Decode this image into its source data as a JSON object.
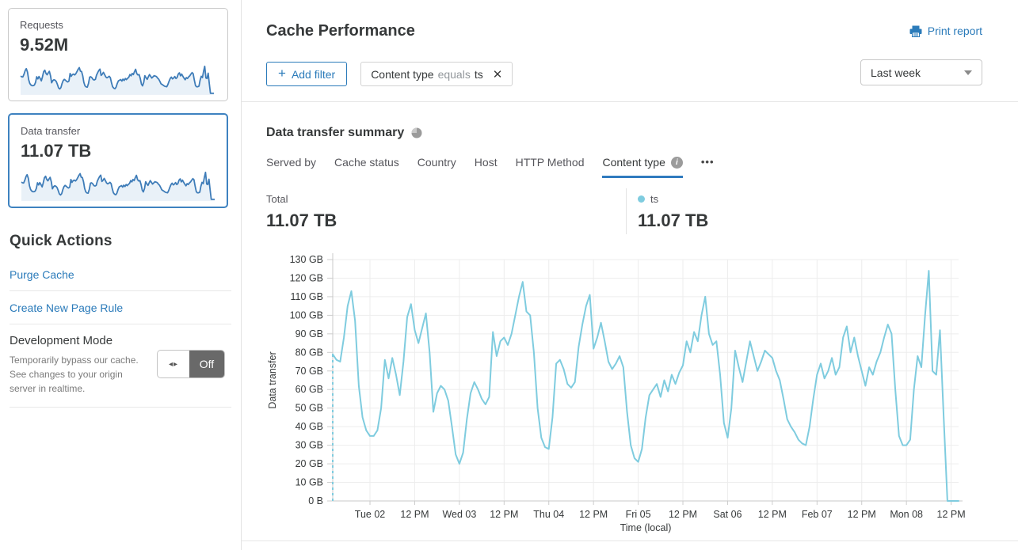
{
  "sidebar": {
    "cards": [
      {
        "label": "Requests",
        "value": "9.52M",
        "selected": false
      },
      {
        "label": "Data transfer",
        "value": "11.07 TB",
        "selected": true
      }
    ],
    "quick_actions": {
      "title": "Quick Actions",
      "links": [
        "Purge Cache",
        "Create New Page Rule"
      ],
      "dev_mode": {
        "title": "Development Mode",
        "description": "Temporarily bypass our cache. See changes to your origin server in realtime.",
        "toggle_state": "Off",
        "toggle_arrows": "◂▸"
      }
    },
    "sparkline_color": "#3e7cb8",
    "sparkline_fill": "#e9f1f8"
  },
  "header": {
    "title": "Cache Performance",
    "print_report_label": "Print report",
    "add_filter_plus": "+",
    "add_filter_label": "Add filter",
    "filter_chip": {
      "field": "Content type",
      "operator": "equals",
      "value": "ts",
      "close_glyph": "✕"
    },
    "time_range_value": "Last week"
  },
  "summary": {
    "title": "Data transfer summary",
    "tabs": [
      "Served by",
      "Cache status",
      "Country",
      "Host",
      "HTTP Method",
      "Content type"
    ],
    "active_tab": "Content type",
    "info_glyph": "i",
    "more_glyph": "•••",
    "total_label": "Total",
    "total_value": "11.07 TB",
    "legend": {
      "name": "ts",
      "value": "11.07 TB",
      "color": "#7fccdf"
    }
  },
  "chart_data": {
    "type": "line",
    "title": "Data transfer summary",
    "xlabel": "Time (local)",
    "ylabel": "Data transfer",
    "ylim": [
      0,
      130
    ],
    "y_unit": "GB",
    "grid": true,
    "start_gap_dashed": true,
    "x_span_hours": 168,
    "y_ticks": [
      "0 B",
      "10 GB",
      "20 GB",
      "30 GB",
      "40 GB",
      "50 GB",
      "60 GB",
      "70 GB",
      "80 GB",
      "90 GB",
      "100 GB",
      "110 GB",
      "120 GB",
      "130 GB"
    ],
    "x_ticks": [
      {
        "hour": 10,
        "label": "Tue 02"
      },
      {
        "hour": 22,
        "label": "12 PM"
      },
      {
        "hour": 34,
        "label": "Wed 03"
      },
      {
        "hour": 46,
        "label": "12 PM"
      },
      {
        "hour": 58,
        "label": "Thu 04"
      },
      {
        "hour": 70,
        "label": "12 PM"
      },
      {
        "hour": 82,
        "label": "Fri 05"
      },
      {
        "hour": 94,
        "label": "12 PM"
      },
      {
        "hour": 106,
        "label": "Sat 06"
      },
      {
        "hour": 118,
        "label": "12 PM"
      },
      {
        "hour": 130,
        "label": "Feb 07"
      },
      {
        "hour": 142,
        "label": "12 PM"
      },
      {
        "hour": 154,
        "label": "Mon 08"
      },
      {
        "hour": 166,
        "label": "12 PM"
      }
    ],
    "series": [
      {
        "name": "ts",
        "color": "#7fccdf",
        "values_gb_hourly": [
          79,
          76,
          75,
          88,
          105,
          113,
          97,
          62,
          45,
          38,
          35,
          35,
          38,
          50,
          76,
          66,
          77,
          68,
          57,
          75,
          99,
          106,
          92,
          85,
          93,
          101,
          80,
          48,
          58,
          62,
          60,
          54,
          40,
          25,
          20,
          26,
          44,
          58,
          64,
          60,
          55,
          52,
          56,
          91,
          78,
          86,
          88,
          84,
          90,
          100,
          110,
          118,
          102,
          100,
          80,
          50,
          34,
          29,
          28,
          45,
          74,
          76,
          71,
          63,
          61,
          64,
          83,
          95,
          105,
          111,
          82,
          88,
          96,
          86,
          75,
          71,
          74,
          78,
          72,
          48,
          30,
          23,
          21,
          28,
          45,
          57,
          60,
          63,
          56,
          65,
          59,
          68,
          63,
          69,
          73,
          86,
          80,
          91,
          86,
          100,
          110,
          90,
          84,
          86,
          68,
          42,
          34,
          50,
          81,
          72,
          64,
          75,
          86,
          78,
          70,
          75,
          81,
          79,
          77,
          70,
          65,
          55,
          44,
          40,
          37,
          33,
          31,
          30,
          40,
          55,
          68,
          74,
          66,
          70,
          77,
          68,
          72,
          88,
          94,
          80,
          88,
          78,
          70,
          62,
          72,
          68,
          75,
          80,
          88,
          95,
          90,
          60,
          35,
          30,
          30,
          33,
          60,
          78,
          72,
          100,
          124,
          70,
          68,
          92,
          45,
          0,
          0,
          0,
          0
        ]
      }
    ]
  }
}
